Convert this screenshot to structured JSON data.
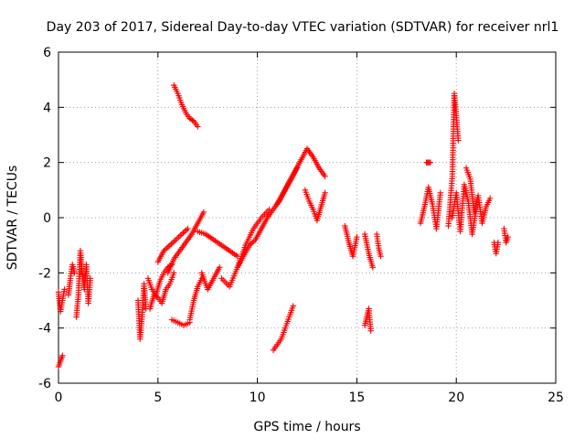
{
  "chart_data": {
    "type": "scatter",
    "title": "Day 203 of 2017, Sidereal Day-to-day VTEC variation (SDTVAR) for receiver nrl1",
    "xlabel": "GPS time / hours",
    "ylabel": "SDTVAR / TECUs",
    "xlim": [
      0,
      25
    ],
    "ylim": [
      -6,
      6
    ],
    "xticks": [
      0,
      5,
      10,
      15,
      20,
      25
    ],
    "yticks": [
      -6,
      -4,
      -2,
      0,
      2,
      4,
      6
    ],
    "grid": true,
    "marker": "+",
    "color": "#ff0000",
    "segments": [
      {
        "x": [
          0.0,
          0.1,
          0.2,
          0.3
        ],
        "y": [
          -2.7,
          -3.4,
          -3.0,
          -2.6
        ]
      },
      {
        "x": [
          0.0,
          0.1,
          0.2
        ],
        "y": [
          -5.4,
          -5.2,
          -5.0
        ]
      },
      {
        "x": [
          0.5,
          0.6,
          0.7,
          0.8
        ],
        "y": [
          -2.8,
          -2.2,
          -1.7,
          -2.0
        ]
      },
      {
        "x": [
          0.9,
          1.0,
          1.1,
          1.2,
          1.3,
          1.4,
          1.5,
          1.6
        ],
        "y": [
          -3.6,
          -2.8,
          -1.2,
          -2.0,
          -2.6,
          -1.7,
          -3.1,
          -2.2
        ]
      },
      {
        "x": [
          4.0,
          4.1,
          4.2,
          4.3,
          4.4
        ],
        "y": [
          -3.0,
          -4.4,
          -3.6,
          -2.4,
          -3.3
        ]
      },
      {
        "x": [
          4.5,
          4.7,
          4.9,
          5.1,
          5.3,
          5.5,
          5.7
        ],
        "y": [
          -2.2,
          -2.6,
          -2.8,
          -2.3,
          -2.0,
          -1.8,
          -1.7
        ]
      },
      {
        "x": [
          4.6,
          4.8,
          5.0,
          5.2,
          5.4,
          5.6,
          5.8
        ],
        "y": [
          -3.3,
          -2.8,
          -2.9,
          -3.1,
          -2.6,
          -2.4,
          -2.0
        ]
      },
      {
        "x": [
          5.0,
          5.3,
          5.6,
          5.9,
          6.2,
          6.5
        ],
        "y": [
          -1.6,
          -1.2,
          -1.0,
          -0.8,
          -0.6,
          -0.4
        ]
      },
      {
        "x": [
          5.8,
          6.0,
          6.2,
          6.4,
          6.6,
          6.8,
          7.0
        ],
        "y": [
          4.8,
          4.5,
          4.1,
          3.8,
          3.6,
          3.5,
          3.3
        ]
      },
      {
        "x": [
          5.5,
          5.8,
          6.1,
          6.4,
          6.7,
          7.0,
          7.3
        ],
        "y": [
          -2.0,
          -1.5,
          -1.2,
          -0.9,
          -0.6,
          -0.2,
          0.2
        ]
      },
      {
        "x": [
          5.7,
          6.0,
          6.3,
          6.6
        ],
        "y": [
          -3.7,
          -3.8,
          -3.9,
          -3.8
        ]
      },
      {
        "x": [
          6.6,
          6.8,
          7.0,
          7.2
        ],
        "y": [
          -3.7,
          -3.0,
          -2.5,
          -2.2
        ]
      },
      {
        "x": [
          7.0,
          7.4,
          7.8,
          8.2,
          8.6,
          9.0
        ],
        "y": [
          -0.5,
          -0.6,
          -0.8,
          -1.0,
          -1.2,
          -1.4
        ]
      },
      {
        "x": [
          7.2,
          7.5,
          7.8,
          8.1
        ],
        "y": [
          -2.0,
          -2.6,
          -2.2,
          -1.8
        ]
      },
      {
        "x": [
          8.2,
          8.6,
          9.0,
          9.4,
          9.8,
          10.2,
          10.6
        ],
        "y": [
          -2.2,
          -2.5,
          -1.8,
          -1.0,
          -0.4,
          0.0,
          0.3
        ]
      },
      {
        "x": [
          9.0,
          9.3,
          9.6,
          9.9,
          10.2,
          10.5,
          10.8,
          11.1,
          11.4,
          11.7,
          12.0
        ],
        "y": [
          -1.8,
          -1.4,
          -1.0,
          -0.8,
          -0.4,
          0.0,
          0.3,
          0.6,
          1.0,
          1.4,
          1.8
        ]
      },
      {
        "x": [
          11.0,
          11.3,
          11.6,
          11.9,
          12.2,
          12.5,
          12.8,
          13.1,
          13.4
        ],
        "y": [
          0.5,
          0.9,
          1.3,
          1.7,
          2.1,
          2.5,
          2.2,
          1.8,
          1.5
        ]
      },
      {
        "x": [
          10.8,
          11.0,
          11.2,
          11.4,
          11.6,
          11.8
        ],
        "y": [
          -4.8,
          -4.6,
          -4.4,
          -4.0,
          -3.6,
          -3.2
        ]
      },
      {
        "x": [
          12.4,
          12.6,
          12.8,
          13.0,
          13.2,
          13.4
        ],
        "y": [
          1.0,
          0.6,
          0.3,
          -0.1,
          0.4,
          0.9
        ]
      },
      {
        "x": [
          14.4,
          14.6,
          14.8,
          15.0
        ],
        "y": [
          -0.3,
          -0.9,
          -1.4,
          -0.7
        ]
      },
      {
        "x": [
          15.4,
          15.6,
          15.8
        ],
        "y": [
          -0.6,
          -1.3,
          -1.8
        ]
      },
      {
        "x": [
          15.4,
          15.5,
          15.6,
          15.7
        ],
        "y": [
          -3.9,
          -3.6,
          -3.3,
          -4.1
        ]
      },
      {
        "x": [
          16.0,
          16.1,
          16.2
        ],
        "y": [
          -0.6,
          -1.1,
          -1.4
        ]
      },
      {
        "x": [
          18.2,
          18.4,
          18.6,
          18.8,
          19.0,
          19.2
        ],
        "y": [
          -0.2,
          0.4,
          1.1,
          0.5,
          -0.4,
          0.9
        ]
      },
      {
        "x": [
          18.5,
          18.6,
          18.7
        ],
        "y": [
          2.0,
          2.0,
          2.0
        ]
      },
      {
        "x": [
          19.6,
          19.8,
          19.9,
          20.0,
          20.1
        ],
        "y": [
          -0.3,
          1.5,
          4.5,
          3.7,
          2.8
        ]
      },
      {
        "x": [
          19.8,
          20.0,
          20.2,
          20.4,
          20.6,
          20.8,
          21.0
        ],
        "y": [
          0.0,
          0.9,
          -0.5,
          1.2,
          0.6,
          -0.6,
          0.3
        ]
      },
      {
        "x": [
          20.5,
          20.7,
          20.9,
          21.1,
          21.3,
          21.5,
          21.7
        ],
        "y": [
          1.8,
          1.4,
          0.2,
          0.8,
          -0.2,
          0.4,
          0.7
        ]
      },
      {
        "x": [
          21.9,
          22.0,
          22.1
        ],
        "y": [
          -0.9,
          -1.3,
          -0.9
        ]
      },
      {
        "x": [
          22.4,
          22.5,
          22.6
        ],
        "y": [
          -0.4,
          -0.9,
          -0.7
        ]
      }
    ]
  }
}
